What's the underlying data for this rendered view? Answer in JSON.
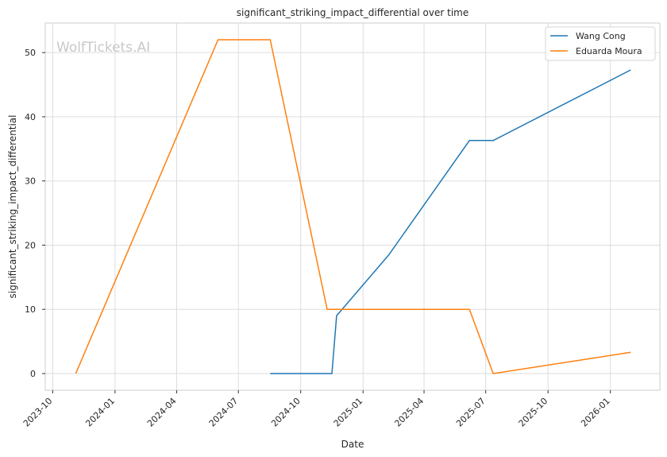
{
  "chart_data": {
    "type": "line",
    "title": "significant_striking_impact_differential over time",
    "xlabel": "Date",
    "ylabel": "significant_striking_impact_differential",
    "watermark": "WolfTickets.AI",
    "x_ticks": [
      "2023-10",
      "2024-01",
      "2024-04",
      "2024-07",
      "2024-10",
      "2025-01",
      "2025-04",
      "2025-07",
      "2025-10",
      "2026-01"
    ],
    "y_ticks": [
      0,
      10,
      20,
      30,
      40,
      50
    ],
    "xlim": [
      "2023-09-20",
      "2026-03-15"
    ],
    "ylim": [
      -2.6,
      54.6
    ],
    "grid": true,
    "legend_position": "top-right",
    "series": [
      {
        "name": "Wang Cong",
        "color": "#1f77b4",
        "points": [
          {
            "x": "2024-08-17",
            "y": 0
          },
          {
            "x": "2024-11-16",
            "y": 0
          },
          {
            "x": "2024-11-23",
            "y": 9
          },
          {
            "x": "2025-02-08",
            "y": 18.5
          },
          {
            "x": "2025-06-07",
            "y": 36.3
          },
          {
            "x": "2025-07-12",
            "y": 36.3
          },
          {
            "x": "2026-01-31",
            "y": 47.3
          }
        ]
      },
      {
        "name": "Eduarda Moura",
        "color": "#ff7f0e",
        "points": [
          {
            "x": "2023-11-04",
            "y": 0
          },
          {
            "x": "2024-06-01",
            "y": 52
          },
          {
            "x": "2024-08-17",
            "y": 52
          },
          {
            "x": "2024-11-09",
            "y": 10
          },
          {
            "x": "2025-06-07",
            "y": 10
          },
          {
            "x": "2025-07-12",
            "y": 0
          },
          {
            "x": "2026-01-31",
            "y": 3.3
          }
        ]
      }
    ]
  }
}
